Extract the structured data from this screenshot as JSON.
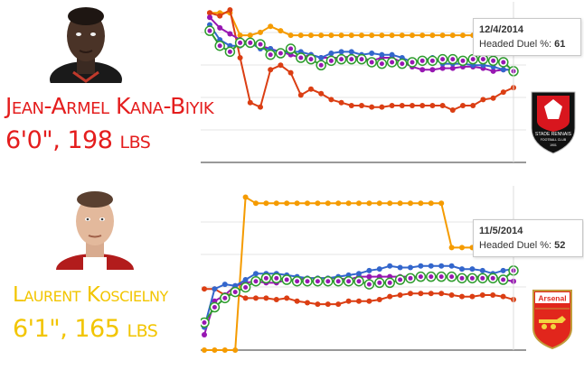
{
  "players": [
    {
      "name": "Jean-Armel Kana-Biyik",
      "stats": "6'0\", 198 lbs",
      "name_color": "#e41d1d",
      "club_logo": "stade-rennais-logo",
      "club_logo_text": [
        "STADE RENNAIS",
        "FOOTBALL CLUB",
        "1901"
      ],
      "tooltip": {
        "date": "12/4/2014",
        "label": "Headed Duel %:",
        "value": "61"
      }
    },
    {
      "name": "Laurent Koscielny",
      "stats": "6'1\", 165 lbs",
      "name_color": "#f2c500",
      "club_logo": "arsenal-logo",
      "club_logo_text": [
        "Arsenal"
      ],
      "tooltip": {
        "date": "11/5/2014",
        "label": "Headed Duel %:",
        "value": "52"
      }
    }
  ],
  "colors": {
    "orange": "#f59b00",
    "red": "#db3e13",
    "purple": "#9717b2",
    "blue": "#3366cc",
    "green": "#2e9c2e"
  },
  "chart_data": [
    {
      "type": "line",
      "grid": true,
      "y_scale_hint": "approx 0-100 (%)",
      "series": [
        {
          "color": "orange",
          "values": [
            100,
            100,
            100,
            85,
            85,
            87,
            91,
            88,
            85,
            85,
            85,
            85,
            85,
            85,
            85,
            85,
            85,
            85,
            85,
            85,
            85,
            85,
            85,
            85,
            85,
            85,
            85,
            85,
            85,
            85,
            85
          ]
        },
        {
          "color": "red",
          "values": [
            100,
            98,
            102,
            70,
            40,
            37,
            62,
            65,
            60,
            45,
            49,
            46,
            42,
            40,
            38,
            38,
            37,
            37,
            38,
            38,
            38,
            38,
            38,
            38,
            35,
            38,
            38,
            42,
            43,
            47,
            50
          ]
        },
        {
          "color": "purple",
          "values": [
            97,
            90,
            86,
            82,
            80,
            78,
            76,
            74,
            72,
            70,
            72,
            70,
            70,
            70,
            71,
            70,
            68,
            70,
            70,
            67,
            64,
            62,
            62,
            63,
            63,
            64,
            64,
            63,
            61,
            62,
            62
          ]
        },
        {
          "color": "blue",
          "values": [
            92,
            82,
            78,
            78,
            80,
            76,
            76,
            73,
            74,
            74,
            72,
            70,
            73,
            74,
            74,
            72,
            73,
            72,
            72,
            70,
            67,
            68,
            70,
            66,
            66,
            66,
            65,
            65,
            64,
            62,
            62
          ]
        },
        {
          "color": "green",
          "values": [
            88,
            78,
            74,
            80,
            80,
            79,
            72,
            73,
            76,
            70,
            69,
            65,
            68,
            69,
            69,
            69,
            67,
            66,
            67,
            66,
            67,
            68,
            68,
            69,
            69,
            68,
            69,
            69,
            68,
            67,
            61
          ]
        }
      ]
    },
    {
      "type": "line",
      "grid": true,
      "y_scale_hint": "approx 0-100 (%)",
      "series": [
        {
          "color": "orange",
          "values": [
            0,
            0,
            0,
            0,
            100,
            96,
            96,
            96,
            96,
            96,
            96,
            96,
            96,
            96,
            96,
            96,
            96,
            96,
            96,
            96,
            96,
            96,
            96,
            96,
            67,
            67,
            67,
            67,
            72,
            72,
            74
          ]
        },
        {
          "color": "red",
          "values": [
            40,
            40,
            36,
            37,
            34,
            34,
            34,
            33,
            34,
            32,
            31,
            30,
            30,
            30,
            32,
            32,
            32,
            33,
            35,
            36,
            37,
            37,
            37,
            37,
            36,
            35,
            35,
            36,
            36,
            35,
            33
          ]
        },
        {
          "color": "purple",
          "values": [
            10,
            32,
            36,
            42,
            44,
            45,
            44,
            44,
            46,
            46,
            47,
            47,
            47,
            47,
            46,
            48,
            48,
            48,
            48,
            48,
            48,
            48,
            48,
            48,
            48,
            48,
            48,
            48,
            48,
            46,
            45
          ]
        },
        {
          "color": "blue",
          "values": [
            15,
            40,
            43,
            42,
            46,
            50,
            50,
            50,
            49,
            48,
            47,
            47,
            47,
            48,
            49,
            50,
            52,
            53,
            55,
            54,
            54,
            55,
            55,
            55,
            55,
            53,
            53,
            52,
            50,
            52,
            53
          ]
        },
        {
          "color": "green",
          "values": [
            18,
            28,
            34,
            38,
            41,
            45,
            47,
            47,
            46,
            45,
            45,
            45,
            45,
            45,
            45,
            45,
            43,
            44,
            44,
            46,
            47,
            48,
            48,
            48,
            48,
            47,
            47,
            47,
            47,
            46,
            52
          ]
        }
      ]
    }
  ]
}
